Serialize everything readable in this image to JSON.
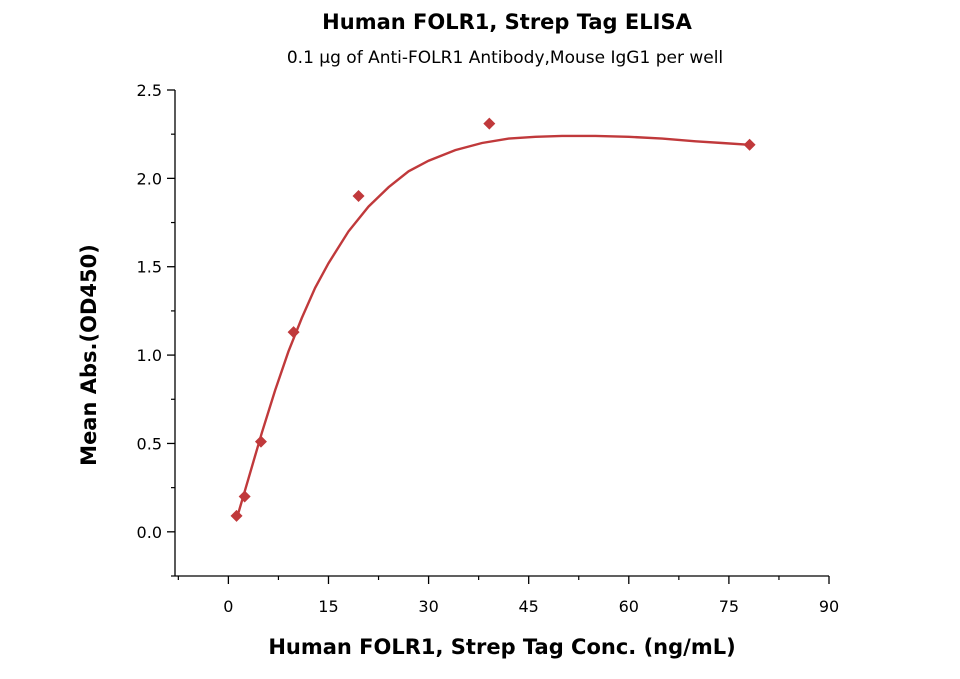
{
  "chart_data": {
    "type": "scatter",
    "title": "Human FOLR1, Strep Tag ELISA",
    "subtitle": "0.1 µg of Anti-FOLR1 Antibody,Mouse IgG1 per well",
    "xlabel": "Human FOLR1, Strep Tag Conc. (ng/mL)",
    "ylabel": "Mean Abs.(OD450)",
    "xlim": [
      -8,
      90
    ],
    "ylim": [
      -0.25,
      2.5
    ],
    "x_ticks": [
      "0",
      "15",
      "30",
      "45",
      "60",
      "75",
      "90"
    ],
    "y_ticks": [
      "0.0",
      "0.5",
      "1.0",
      "1.5",
      "2.0",
      "2.5"
    ],
    "grid": false,
    "legend": "none",
    "color": "#c0393b",
    "series": [
      {
        "points": [
          {
            "x": 1.22,
            "y": 0.09
          },
          {
            "x": 2.44,
            "y": 0.2
          },
          {
            "x": 4.88,
            "y": 0.51
          },
          {
            "x": 9.77,
            "y": 1.13
          },
          {
            "x": 19.5,
            "y": 1.9
          },
          {
            "x": 39.1,
            "y": 2.31
          },
          {
            "x": 78.1,
            "y": 2.19
          }
        ],
        "fit": {
          "x": [
            1.22,
            3,
            5,
            7,
            9,
            11,
            13,
            15,
            18,
            21,
            24,
            27,
            30,
            34,
            38,
            42,
            46,
            50,
            55,
            60,
            65,
            70,
            74,
            78.1
          ],
          "y": [
            0.07,
            0.3,
            0.56,
            0.8,
            1.02,
            1.21,
            1.38,
            1.52,
            1.7,
            1.84,
            1.95,
            2.04,
            2.1,
            2.16,
            2.2,
            2.225,
            2.235,
            2.24,
            2.24,
            2.235,
            2.225,
            2.21,
            2.2,
            2.19
          ]
        }
      }
    ]
  }
}
